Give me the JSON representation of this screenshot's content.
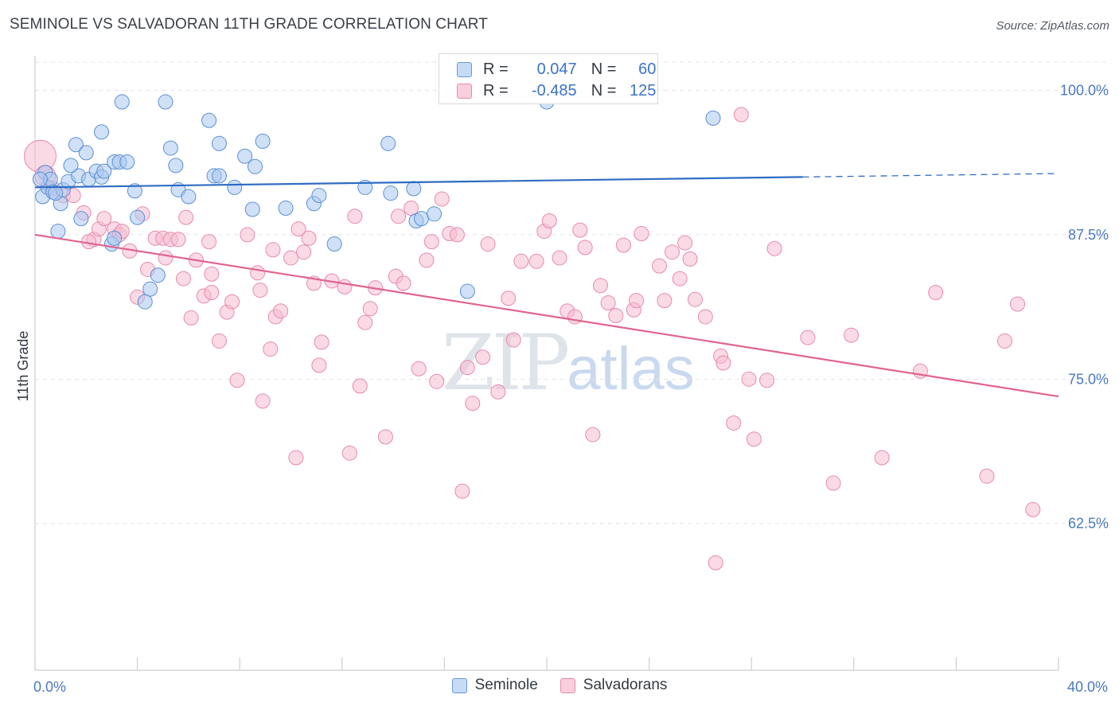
{
  "title": "SEMINOLE VS SALVADORAN 11TH GRADE CORRELATION CHART",
  "source": "Source: ZipAtlas.com",
  "watermark": {
    "zip": "ZIP",
    "atlas": "atlas"
  },
  "legend": {
    "rows": [
      {
        "r_label": "R =",
        "r_value": "0.047",
        "n_label": "N =",
        "n_value": "60"
      },
      {
        "r_label": "R =",
        "r_value": "-0.485",
        "n_label": "N =",
        "n_value": "125"
      }
    ]
  },
  "bottom_legend": [
    "Seminole",
    "Salvadorans"
  ],
  "colors": {
    "seminole_fill": "#a9c8f0",
    "seminole_stroke": "#5a8fd6",
    "seminole_line": "#2f6cc4",
    "salvadoran_fill": "#f6bcd0",
    "salvadoran_stroke": "#e88aab",
    "salvadoran_line": "#e0648f",
    "axis_text": "#4a78c2",
    "grid": "#e3e3e3"
  },
  "chart_data": {
    "type": "scatter",
    "xlabel": "",
    "ylabel": "11th Grade",
    "xlim": [
      0,
      40
    ],
    "ylim": [
      49.8,
      103
    ],
    "x_tick_labels": [
      {
        "value": 0,
        "label": "0.0%"
      },
      {
        "value": 40,
        "label": "40.0%"
      }
    ],
    "y_ticks": [
      {
        "value": 100,
        "label": "100.0%"
      },
      {
        "value": 87.5,
        "label": "87.5%"
      },
      {
        "value": 75,
        "label": "75.0%"
      },
      {
        "value": 62.5,
        "label": "62.5%"
      }
    ],
    "series": [
      {
        "name": "Seminole",
        "r": 0.047,
        "n": 60,
        "trend": {
          "x0": 0,
          "y0": 91.6,
          "x1": 30,
          "y1": 92.5,
          "dash_to_x": 40,
          "dash_to_y": 92.8
        },
        "points": [
          [
            0.3,
            90.8
          ],
          [
            0.4,
            92.9
          ],
          [
            0.5,
            91.6
          ],
          [
            0.6,
            92.3
          ],
          [
            0.7,
            91.2
          ],
          [
            0.9,
            87.8
          ],
          [
            1.0,
            90.2
          ],
          [
            1.1,
            91.4
          ],
          [
            1.3,
            92.1
          ],
          [
            1.6,
            95.3
          ],
          [
            1.7,
            92.6
          ],
          [
            1.8,
            88.9
          ],
          [
            2.0,
            94.6
          ],
          [
            2.1,
            92.3
          ],
          [
            2.4,
            93.0
          ],
          [
            2.6,
            96.4
          ],
          [
            2.6,
            92.5
          ],
          [
            2.7,
            93.0
          ],
          [
            3.0,
            86.7
          ],
          [
            3.1,
            87.2
          ],
          [
            3.1,
            93.8
          ],
          [
            3.3,
            93.8
          ],
          [
            3.4,
            99.0
          ],
          [
            3.6,
            93.8
          ],
          [
            3.9,
            91.3
          ],
          [
            4.0,
            89.0
          ],
          [
            4.3,
            81.7
          ],
          [
            4.5,
            82.8
          ],
          [
            4.8,
            84.0
          ],
          [
            5.1,
            99.0
          ],
          [
            5.3,
            95.0
          ],
          [
            5.5,
            93.5
          ],
          [
            5.6,
            91.4
          ],
          [
            6.0,
            90.8
          ],
          [
            6.8,
            97.4
          ],
          [
            7.0,
            92.6
          ],
          [
            7.2,
            95.4
          ],
          [
            7.2,
            92.6
          ],
          [
            7.8,
            91.6
          ],
          [
            8.2,
            94.3
          ],
          [
            8.5,
            89.7
          ],
          [
            8.6,
            93.4
          ],
          [
            8.9,
            95.6
          ],
          [
            9.8,
            89.8
          ],
          [
            10.9,
            90.2
          ],
          [
            11.1,
            90.9
          ],
          [
            11.7,
            86.7
          ],
          [
            12.9,
            91.6
          ],
          [
            13.8,
            95.4
          ],
          [
            13.9,
            91.1
          ],
          [
            14.8,
            91.5
          ],
          [
            14.9,
            88.7
          ],
          [
            15.1,
            88.9
          ],
          [
            15.6,
            89.3
          ],
          [
            16.9,
            82.6
          ],
          [
            20.0,
            99.0
          ],
          [
            26.5,
            97.6
          ],
          [
            0.2,
            92.3
          ],
          [
            0.8,
            91.1
          ],
          [
            1.4,
            93.5
          ]
        ]
      },
      {
        "name": "Salvadorans",
        "r": -0.485,
        "n": 125,
        "trend": {
          "x0": 0,
          "y0": 87.5,
          "x1": 40,
          "y1": 73.5
        },
        "points": [
          [
            0.2,
            94.3
          ],
          [
            0.4,
            92.6
          ],
          [
            0.7,
            91.5
          ],
          [
            1.1,
            90.9
          ],
          [
            1.5,
            90.9
          ],
          [
            1.9,
            89.4
          ],
          [
            2.3,
            87.1
          ],
          [
            2.5,
            88.0
          ],
          [
            2.7,
            88.9
          ],
          [
            3.1,
            88.0
          ],
          [
            3.3,
            87.5
          ],
          [
            3.4,
            87.8
          ],
          [
            3.7,
            86.1
          ],
          [
            4.0,
            82.1
          ],
          [
            4.2,
            89.3
          ],
          [
            4.4,
            84.5
          ],
          [
            4.7,
            87.2
          ],
          [
            5.0,
            87.2
          ],
          [
            5.1,
            85.5
          ],
          [
            5.3,
            87.1
          ],
          [
            5.6,
            87.1
          ],
          [
            5.8,
            83.7
          ],
          [
            5.9,
            89.0
          ],
          [
            6.1,
            80.3
          ],
          [
            6.3,
            85.3
          ],
          [
            6.6,
            82.2
          ],
          [
            6.8,
            86.9
          ],
          [
            6.9,
            84.1
          ],
          [
            7.2,
            78.3
          ],
          [
            7.5,
            80.8
          ],
          [
            7.7,
            81.7
          ],
          [
            7.9,
            74.9
          ],
          [
            8.3,
            87.5
          ],
          [
            8.7,
            84.2
          ],
          [
            8.8,
            82.7
          ],
          [
            8.9,
            73.1
          ],
          [
            9.2,
            77.6
          ],
          [
            9.4,
            80.4
          ],
          [
            9.6,
            80.9
          ],
          [
            10.0,
            85.5
          ],
          [
            10.2,
            68.2
          ],
          [
            10.3,
            88.0
          ],
          [
            10.5,
            86.0
          ],
          [
            10.7,
            87.2
          ],
          [
            10.9,
            83.3
          ],
          [
            11.1,
            76.2
          ],
          [
            11.2,
            78.2
          ],
          [
            11.6,
            83.5
          ],
          [
            12.1,
            83.0
          ],
          [
            12.3,
            68.6
          ],
          [
            12.5,
            89.1
          ],
          [
            12.7,
            74.4
          ],
          [
            12.9,
            79.9
          ],
          [
            13.1,
            81.1
          ],
          [
            13.3,
            82.9
          ],
          [
            13.7,
            70.0
          ],
          [
            14.1,
            83.9
          ],
          [
            14.2,
            89.1
          ],
          [
            14.4,
            83.3
          ],
          [
            14.7,
            89.8
          ],
          [
            15.0,
            75.9
          ],
          [
            15.3,
            85.3
          ],
          [
            15.5,
            86.9
          ],
          [
            15.7,
            74.8
          ],
          [
            15.9,
            90.6
          ],
          [
            16.2,
            87.6
          ],
          [
            16.5,
            87.5
          ],
          [
            16.7,
            65.3
          ],
          [
            16.9,
            76.0
          ],
          [
            17.1,
            72.9
          ],
          [
            17.5,
            76.9
          ],
          [
            17.7,
            86.7
          ],
          [
            18.1,
            73.9
          ],
          [
            18.5,
            82.0
          ],
          [
            18.7,
            78.4
          ],
          [
            19.0,
            85.2
          ],
          [
            19.6,
            85.2
          ],
          [
            19.9,
            87.8
          ],
          [
            20.1,
            88.7
          ],
          [
            20.5,
            85.5
          ],
          [
            20.8,
            80.9
          ],
          [
            21.1,
            80.4
          ],
          [
            21.3,
            87.9
          ],
          [
            21.5,
            86.4
          ],
          [
            21.8,
            70.2
          ],
          [
            22.1,
            83.1
          ],
          [
            22.4,
            81.6
          ],
          [
            22.7,
            80.5
          ],
          [
            23.0,
            86.6
          ],
          [
            23.4,
            81.0
          ],
          [
            23.5,
            81.8
          ],
          [
            23.7,
            87.6
          ],
          [
            24.4,
            84.8
          ],
          [
            24.6,
            81.8
          ],
          [
            24.9,
            86.0
          ],
          [
            25.2,
            83.7
          ],
          [
            25.4,
            86.8
          ],
          [
            25.6,
            85.4
          ],
          [
            25.8,
            81.9
          ],
          [
            26.6,
            59.1
          ],
          [
            26.2,
            80.4
          ],
          [
            26.8,
            77.0
          ],
          [
            26.9,
            76.4
          ],
          [
            27.3,
            71.2
          ],
          [
            27.9,
            75.0
          ],
          [
            28.1,
            69.8
          ],
          [
            28.6,
            74.9
          ],
          [
            28.9,
            86.3
          ],
          [
            27.6,
            97.9
          ],
          [
            30.2,
            78.6
          ],
          [
            31.2,
            66.0
          ],
          [
            31.9,
            78.8
          ],
          [
            33.1,
            68.2
          ],
          [
            34.6,
            75.7
          ],
          [
            35.2,
            82.5
          ],
          [
            37.2,
            66.6
          ],
          [
            37.9,
            78.3
          ],
          [
            38.4,
            81.5
          ],
          [
            39.0,
            63.7
          ],
          [
            2.1,
            86.9
          ],
          [
            6.9,
            82.5
          ],
          [
            9.3,
            86.2
          ]
        ]
      }
    ]
  }
}
